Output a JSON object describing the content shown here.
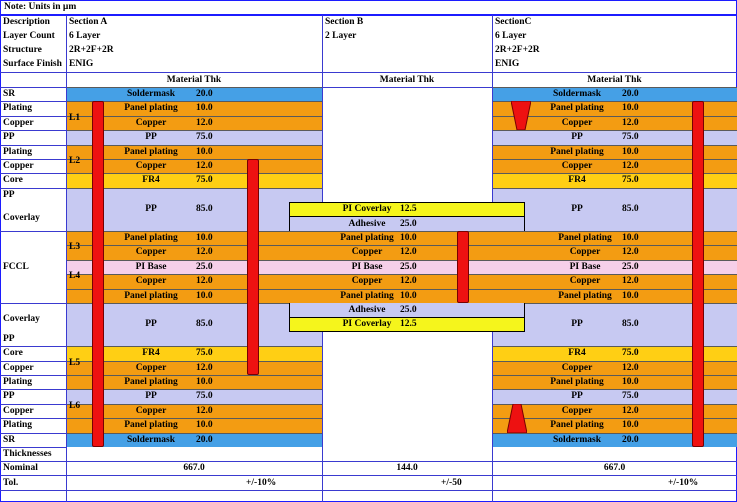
{
  "note": "Note: Units in µm",
  "header": {
    "labels": [
      "Description",
      "Layer Count",
      "Structure",
      "Surface Finish"
    ],
    "section_a": [
      "Section A",
      "6 Layer",
      "2R+2F+2R",
      "ENIG"
    ],
    "section_b": [
      "Section B",
      "2 Layer"
    ],
    "section_c": [
      "SectionC",
      "6 Layer",
      "2R+2F+2R",
      "ENIG"
    ],
    "material_thk": "Material Thk"
  },
  "left_labels": {
    "sr_top": "SR",
    "plating1": "Plating",
    "copper1": "Copper",
    "pp1": "PP",
    "plating2": "Plating",
    "copper2": "Copper",
    "core1": "Core",
    "pp2": "PP",
    "coverlay1": "Coverlay",
    "fccl": "FCCL",
    "coverlay2": "Coverlay",
    "pp3": "PP",
    "core2": "Core",
    "copper3": "Copper",
    "plating3": "Plating",
    "pp4": "PP",
    "copper4": "Copper",
    "plating4": "Plating",
    "sr_bot": "SR",
    "thicknesses": "Thicknesses",
    "nominal": "Nominal",
    "tol": "Tol."
  },
  "layer_tags": [
    "L1",
    "L2",
    "L3",
    "L4",
    "L5",
    "L6"
  ],
  "rigid_layers": {
    "soldermask": "Soldermask",
    "soldermask_v": "20.0",
    "panel_plating": "Panel plating",
    "panel_plating_v": "10.0",
    "copper": "Copper",
    "copper_v": "12.0",
    "pp": "PP",
    "pp_v": "75.0",
    "fr4": "FR4",
    "fr4_v": "75.0",
    "pp_thick_v": "85.0"
  },
  "flex_layers": {
    "pi_coverlay": "PI Coverlay",
    "pi_coverlay_v": "12.5",
    "adhesive": "Adhesive",
    "adhesive_v": "25.0",
    "panel_plating": "Panel plating",
    "panel_plating_v": "10.0",
    "copper": "Copper",
    "copper_v": "12.0",
    "pi_base": "PI Base",
    "pi_base_v": "25.0"
  },
  "totals": {
    "nominal_a": "667.0",
    "nominal_b": "144.0",
    "nominal_c": "667.0",
    "tol_a": "+/-10%",
    "tol_b": "+/-50",
    "tol_c": "+/-10%"
  },
  "colors": {
    "soldermask": "#45a0e6",
    "plating_copper": "#f39c12",
    "pp": "#c7c9f2",
    "core": "#ffcf14",
    "pi_base": "#f6cfe9",
    "pi_coverlay": "#f5f51c",
    "via": "#ee1111",
    "grid": "#1c1cff"
  }
}
